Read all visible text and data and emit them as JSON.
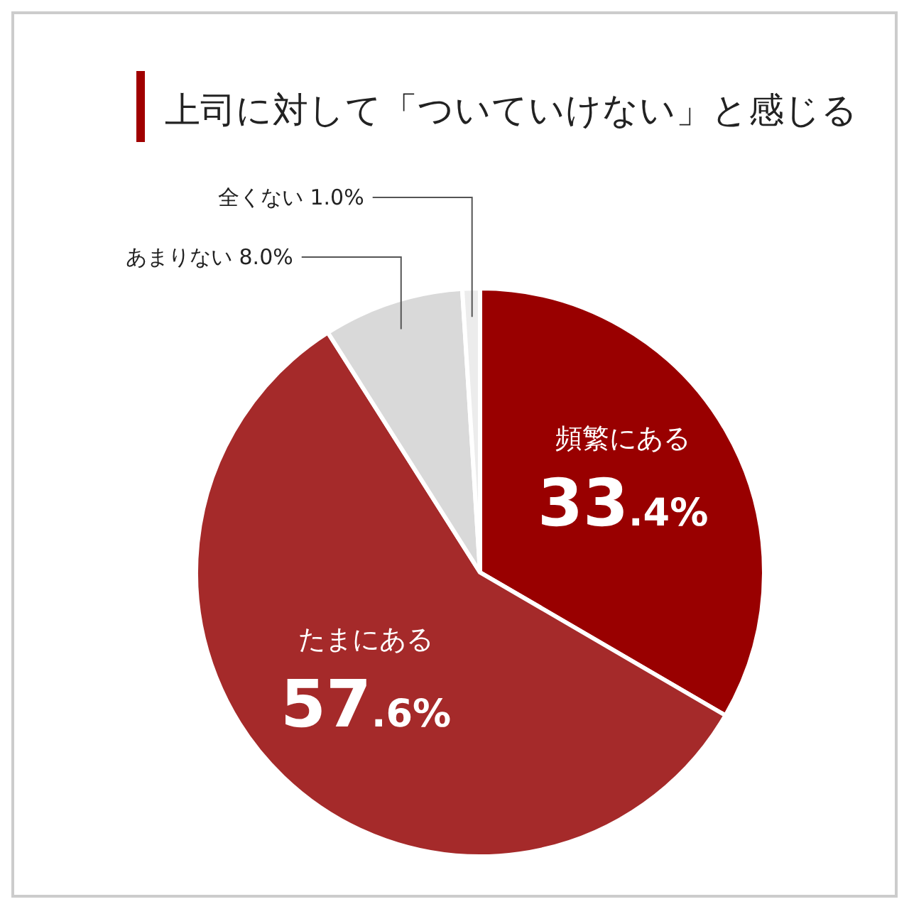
{
  "chart_data": {
    "type": "pie",
    "title": "上司に対して「ついていけない」と感じる",
    "categories": [
      "頻繁にある",
      "たまにある",
      "あまりない",
      "全くない"
    ],
    "values": [
      33.4,
      57.6,
      8.0,
      1.0
    ],
    "colors": [
      "#990000",
      "#a52a2a",
      "#d9d9d9",
      "#ececec"
    ],
    "value_labels": [
      "33.4%",
      "57.6%",
      "8.0%",
      "1.0%"
    ]
  }
}
